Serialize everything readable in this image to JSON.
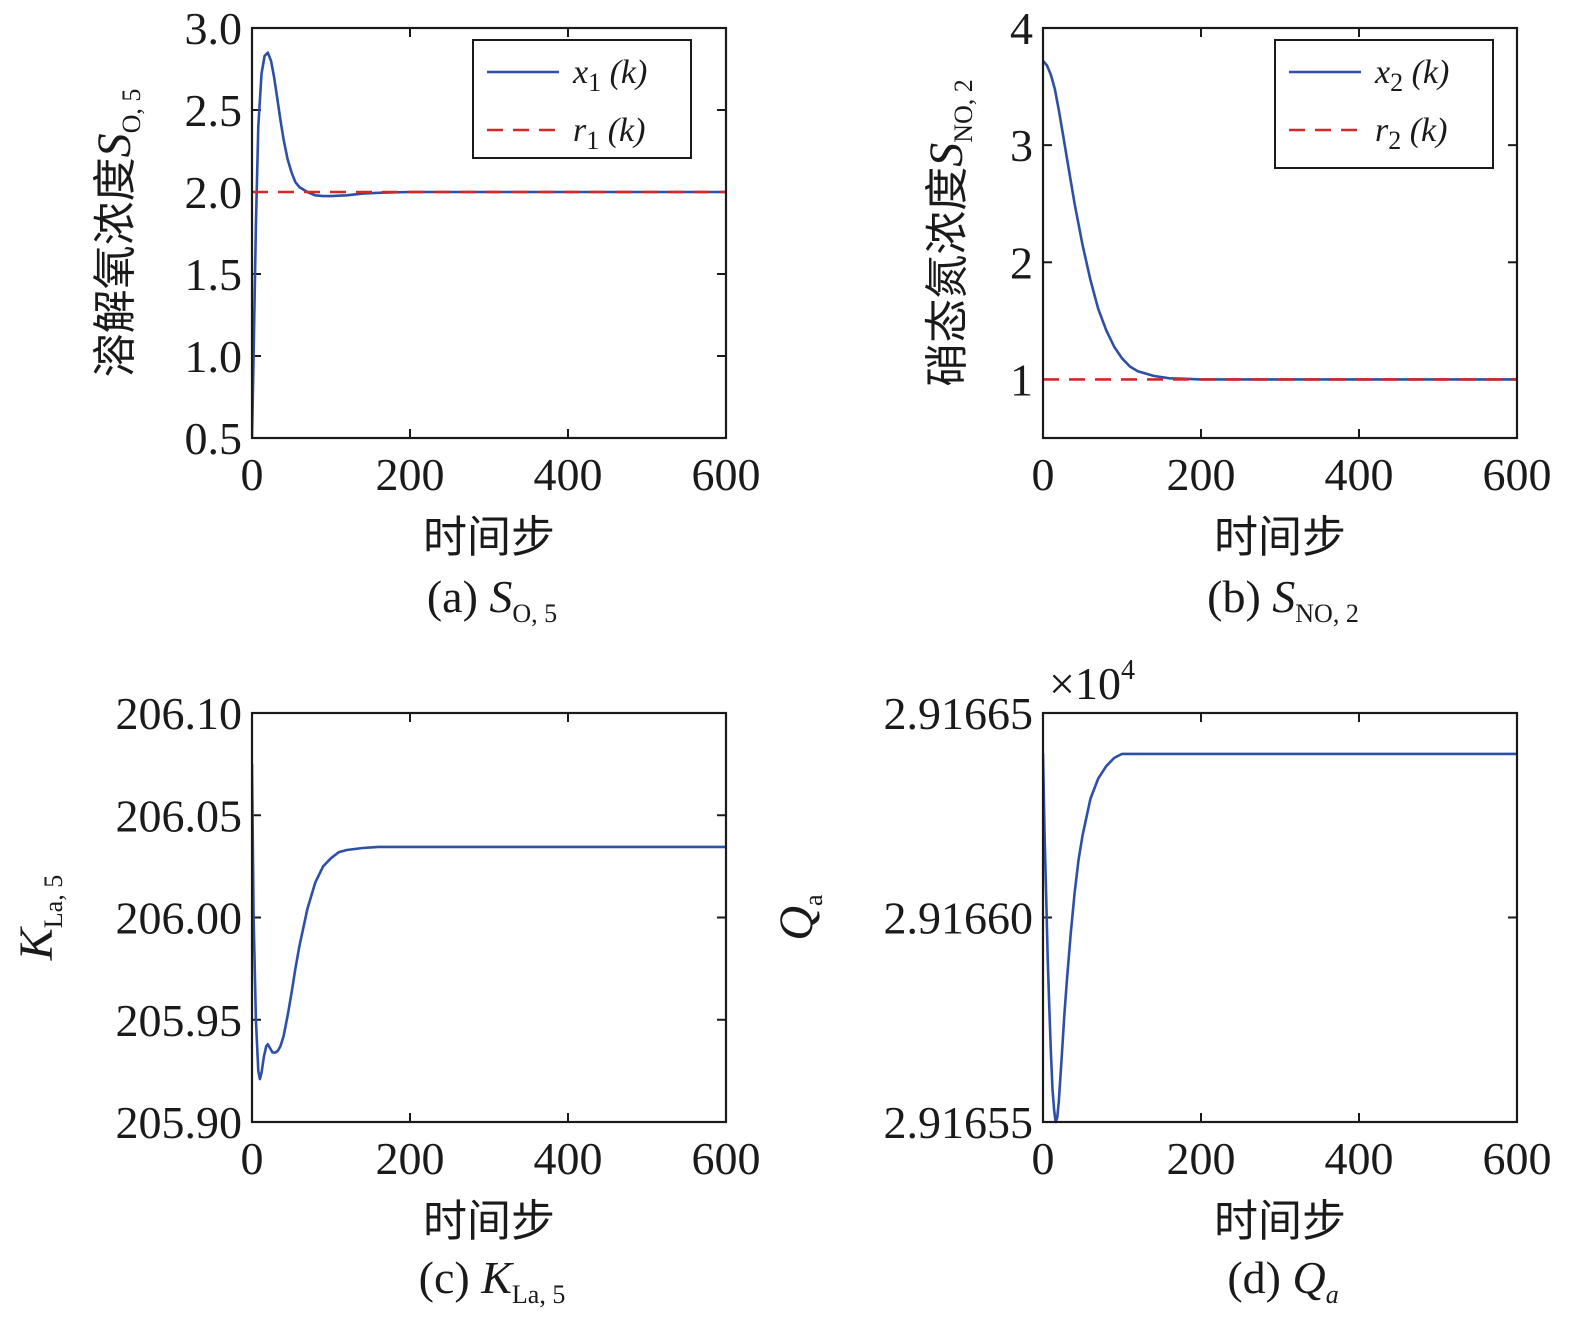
{
  "chart_data": [
    {
      "id": "a",
      "type": "line",
      "caption_prefix": "(a) ",
      "caption_math": {
        "main": "S",
        "sub": "O, 5"
      },
      "ylabel_text": "溶解氧浓度",
      "ylabel_math": {
        "main": "S",
        "sub": "O, 5"
      },
      "xlabel": "时间步",
      "xlim": [
        0,
        600
      ],
      "ylim": [
        0.5,
        3.0
      ],
      "xticks": [
        "0",
        "200",
        "400",
        "600"
      ],
      "yticks": [
        "0.5",
        "1.0",
        "1.5",
        "2.0",
        "2.5",
        "3.0"
      ],
      "legend_position": "top-right",
      "series": [
        {
          "name": "x",
          "name_sub": "1",
          "name_arg": " (k)",
          "color": "#2e4fa8",
          "dash": false,
          "x": [
            0,
            2,
            5,
            8,
            12,
            16,
            20,
            24,
            28,
            32,
            36,
            40,
            45,
            50,
            55,
            60,
            70,
            80,
            90,
            100,
            120,
            140,
            160,
            200,
            300,
            400,
            600
          ],
          "y": [
            0.5,
            1.0,
            1.8,
            2.4,
            2.72,
            2.83,
            2.85,
            2.8,
            2.7,
            2.57,
            2.44,
            2.32,
            2.2,
            2.12,
            2.06,
            2.03,
            2.0,
            1.98,
            1.975,
            1.975,
            1.98,
            1.99,
            1.995,
            2.0,
            2.0,
            2.0,
            2.0
          ]
        },
        {
          "name": "r",
          "name_sub": "1",
          "name_arg": " (k)",
          "color": "#d62728",
          "dash": true,
          "x": [
            0,
            600
          ],
          "y": [
            2.0,
            2.0
          ]
        }
      ]
    },
    {
      "id": "b",
      "type": "line",
      "caption_prefix": "(b) ",
      "caption_math": {
        "main": "S",
        "sub": "NO, 2"
      },
      "ylabel_text": "硝态氮浓度",
      "ylabel_math": {
        "main": "S",
        "sub": "NO, 2"
      },
      "xlabel": "时间步",
      "xlim": [
        0,
        600
      ],
      "ylim": [
        0.5,
        4.0
      ],
      "xticks": [
        "0",
        "200",
        "400",
        "600"
      ],
      "yticks": [
        "1",
        "2",
        "3",
        "4"
      ],
      "ytick_values": [
        1,
        2,
        3,
        4
      ],
      "legend_position": "top-right",
      "series": [
        {
          "name": "x",
          "name_sub": "2",
          "name_arg": " (k)",
          "color": "#2e4fa8",
          "dash": false,
          "x": [
            0,
            5,
            10,
            15,
            20,
            25,
            30,
            40,
            50,
            60,
            70,
            80,
            90,
            100,
            110,
            120,
            140,
            160,
            180,
            200,
            250,
            300,
            400,
            600
          ],
          "y": [
            3.72,
            3.68,
            3.6,
            3.48,
            3.3,
            3.1,
            2.9,
            2.5,
            2.15,
            1.85,
            1.6,
            1.42,
            1.28,
            1.18,
            1.11,
            1.07,
            1.03,
            1.01,
            1.005,
            1.0,
            1.0,
            1.0,
            1.0,
            1.0
          ]
        },
        {
          "name": "r",
          "name_sub": "2",
          "name_arg": " (k)",
          "color": "#d62728",
          "dash": true,
          "x": [
            0,
            600
          ],
          "y": [
            1.0,
            1.0
          ]
        }
      ]
    },
    {
      "id": "c",
      "type": "line",
      "caption_prefix": "(c) ",
      "caption_math": {
        "main": "K",
        "sub": "La, 5"
      },
      "ylabel_text": "",
      "ylabel_math": {
        "main": "K",
        "sub": "La, 5"
      },
      "xlabel": "时间步",
      "xlim": [
        0,
        600
      ],
      "ylim": [
        205.9,
        206.1
      ],
      "xticks": [
        "0",
        "200",
        "400",
        "600"
      ],
      "yticks": [
        "205.90",
        "205.95",
        "206.00",
        "206.05",
        "206.10"
      ],
      "series": [
        {
          "name": "",
          "color": "#2e4fa8",
          "dash": false,
          "x": [
            0,
            2,
            5,
            8,
            10,
            12,
            15,
            18,
            20,
            23,
            26,
            30,
            33,
            36,
            40,
            45,
            50,
            55,
            60,
            70,
            80,
            90,
            100,
            110,
            120,
            140,
            160,
            200,
            250,
            300,
            400,
            600
          ],
          "y": [
            206.075,
            206.0,
            205.95,
            205.925,
            205.921,
            205.924,
            205.932,
            205.937,
            205.938,
            205.936,
            205.934,
            205.934,
            205.935,
            205.937,
            205.942,
            205.952,
            205.963,
            205.975,
            205.986,
            206.004,
            206.017,
            206.025,
            206.029,
            206.032,
            206.033,
            206.034,
            206.0345,
            206.0345,
            206.0345,
            206.0345,
            206.0345,
            206.0345
          ]
        }
      ]
    },
    {
      "id": "d",
      "type": "line",
      "caption_prefix": "(d) ",
      "caption_math": {
        "main": "Q",
        "sub": "a"
      },
      "ylabel_text": "",
      "ylabel_math": {
        "main": "Q",
        "sub": "a"
      },
      "xlabel": "时间步",
      "multiplier": {
        "base": "×10",
        "exp": "4"
      },
      "xlim": [
        0,
        600
      ],
      "ylim": [
        2.91655,
        2.91665
      ],
      "xticks": [
        "0",
        "200",
        "400",
        "600"
      ],
      "yticks": [
        "2.91655",
        "2.91660",
        "2.91665"
      ],
      "series": [
        {
          "name": "",
          "color": "#2e4fa8",
          "dash": false,
          "x": [
            0,
            2,
            4,
            6,
            8,
            10,
            12,
            14,
            16,
            18,
            20,
            22,
            24,
            27,
            30,
            35,
            40,
            45,
            50,
            60,
            70,
            80,
            90,
            100,
            110,
            120,
            140,
            160,
            200,
            300,
            400,
            600
          ],
          "y": [
            2.91664,
            2.91662,
            2.916605,
            2.91659,
            2.916578,
            2.916567,
            2.916558,
            2.916553,
            2.91655,
            2.916551,
            2.916555,
            2.916561,
            2.916567,
            2.916576,
            2.916584,
            2.916596,
            2.916606,
            2.916614,
            2.91662,
            2.916629,
            2.916634,
            2.916637,
            2.916639,
            2.91664,
            2.91664,
            2.91664,
            2.91664,
            2.91664,
            2.91664,
            2.91664,
            2.91664,
            2.91664
          ]
        }
      ]
    }
  ]
}
